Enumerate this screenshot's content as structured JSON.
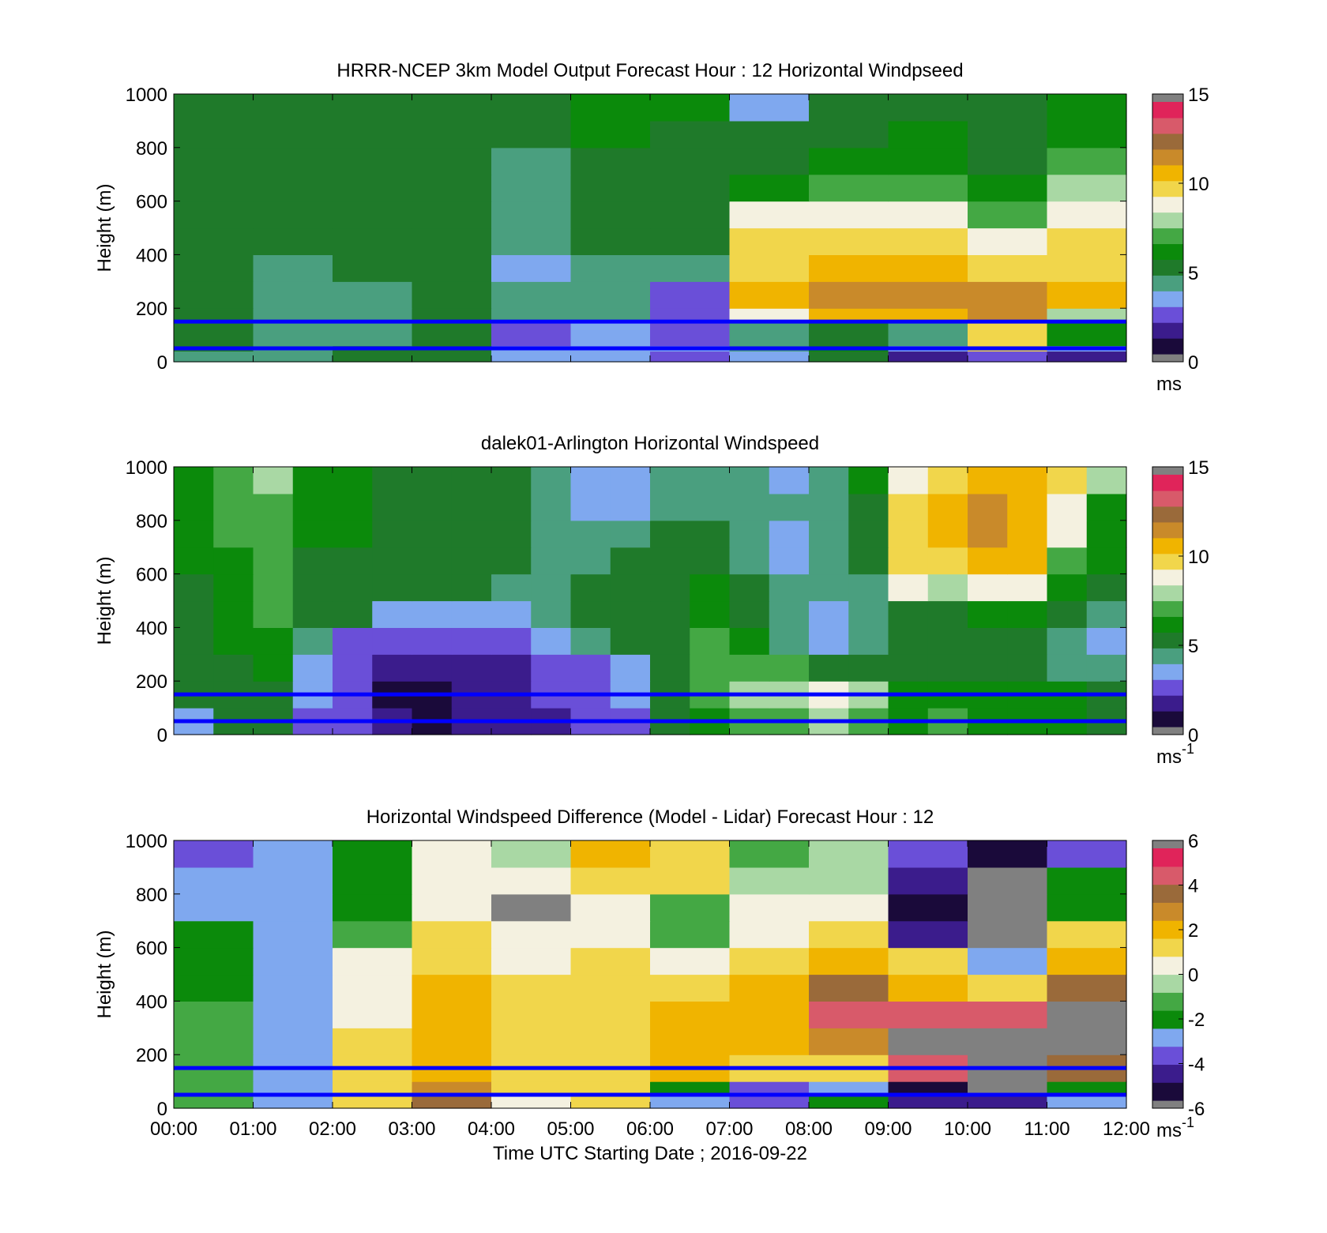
{
  "palettes": {
    "speed": [
      "#1a0a3a",
      "#3b1c8c",
      "#6a4fd8",
      "#7fa8ef",
      "#4a9f7f",
      "#1f7a2a",
      "#0b8a0b",
      "#44a844",
      "#a9d8a4",
      "#f4f1e0",
      "#f1d64b",
      "#f0b400",
      "#c98a2a",
      "#9a6a3a",
      "#d85a6a",
      "#e0245a"
    ],
    "diff": [
      "#1a0a3a",
      "#3b1c8c",
      "#6a4fd8",
      "#7fa8ef",
      "#0b8a0b",
      "#44a844",
      "#a9d8a4",
      "#f4f1e0",
      "#f1d64b",
      "#f0b400",
      "#c98a2a",
      "#9a6a3a",
      "#d85a6a",
      "#e0245a"
    ],
    "over_under": "#808080"
  },
  "reference_lines": {
    "color": "#0000ff",
    "heights_m": [
      50,
      150
    ]
  },
  "chart_data": [
    {
      "type": "heatmap",
      "title": "HRRR-NCEP 3km Model Output   Forecast Hour : 12 Horizontal Windpseed",
      "xlabel": "",
      "ylabel": "Height (m)",
      "ylim": [
        0,
        1000
      ],
      "yticks": [
        "0",
        "200",
        "400",
        "600",
        "800",
        "1000"
      ],
      "xlim_hours": [
        0,
        12
      ],
      "show_xtick_labels": false,
      "colorbar": {
        "range": [
          0,
          15
        ],
        "ticks": [
          "0",
          "5",
          "10",
          "15"
        ],
        "unit": "ms",
        "unit_sup": "",
        "palette": "speed"
      },
      "x_hours": [
        0,
        1,
        2,
        3,
        4,
        5,
        6,
        7,
        8,
        9,
        10,
        11
      ],
      "heights_m": [
        0,
        40,
        60,
        150,
        200,
        300,
        400,
        500,
        600,
        700,
        800,
        900,
        1000
      ],
      "values": [
        [
          4.2,
          4.6,
          4.7,
          4.9,
          3.0,
          3.4,
          2.8,
          3.5,
          5.0,
          1.5,
          2.0,
          1.6
        ],
        [
          5.0,
          4.2,
          5.0,
          4.9,
          3.5,
          3.7,
          3.2,
          4.5,
          5.8,
          3.0,
          9.5,
          3.3
        ],
        [
          5.1,
          4.0,
          4.5,
          5.0,
          2.6,
          3.2,
          2.0,
          4.6,
          5.5,
          4.6,
          9.8,
          6.2
        ],
        [
          4.8,
          4.3,
          4.5,
          5.0,
          4.0,
          3.8,
          2.0,
          8.6,
          11.0,
          10.9,
          11.5,
          8.3
        ],
        [
          4.7,
          4.2,
          4.5,
          5.0,
          4.0,
          3.8,
          2.8,
          10.5,
          11.5,
          11.7,
          11.3,
          10.5
        ],
        [
          4.7,
          4.5,
          4.7,
          5.0,
          3.6,
          4.2,
          4.0,
          10.3,
          10.8,
          10.8,
          9.7,
          10.2
        ],
        [
          4.7,
          4.7,
          4.7,
          5.4,
          4.0,
          4.9,
          4.9,
          9.5,
          9.5,
          9.4,
          9.0,
          9.5
        ],
        [
          4.7,
          4.7,
          4.7,
          5.5,
          4.0,
          5.0,
          5.0,
          9.0,
          9.0,
          8.9,
          7.4,
          9.3
        ],
        [
          4.8,
          4.8,
          4.8,
          5.6,
          4.3,
          5.2,
          5.2,
          6.4,
          6.6,
          6.6,
          6.0,
          7.9
        ],
        [
          5.0,
          5.0,
          5.0,
          5.6,
          4.6,
          5.3,
          5.4,
          5.3,
          5.9,
          6.0,
          5.6,
          7.2
        ],
        [
          5.0,
          5.0,
          5.1,
          5.6,
          5.1,
          5.8,
          5.5,
          4.8,
          5.3,
          5.8,
          5.3,
          6.4
        ],
        [
          5.1,
          5.1,
          5.1,
          5.6,
          5.2,
          5.8,
          5.8,
          3.3,
          4.9,
          5.3,
          4.9,
          6.1
        ]
      ]
    },
    {
      "type": "heatmap",
      "title": "dalek01-Arlington  Horizontal Windspeed",
      "xlabel": "",
      "ylabel": "Height (m)",
      "ylim": [
        0,
        1000
      ],
      "yticks": [
        "0",
        "200",
        "400",
        "600",
        "800",
        "1000"
      ],
      "xlim_hours": [
        0,
        12
      ],
      "show_xtick_labels": false,
      "colorbar": {
        "range": [
          0,
          15
        ],
        "ticks": [
          "0",
          "5",
          "10",
          "15"
        ],
        "unit": "ms",
        "unit_sup": "-1",
        "palette": "speed"
      },
      "x_hours": [
        0,
        0.5,
        1,
        1.5,
        2,
        2.5,
        3,
        3.5,
        4,
        4.5,
        5,
        5.5,
        6,
        6.5,
        7,
        7.5,
        8,
        8.5,
        9,
        9.5,
        10,
        10.5,
        11,
        11.5
      ],
      "heights_m": [
        0,
        100,
        200,
        300,
        400,
        500,
        600,
        700,
        800,
        900,
        1000
      ],
      "values": [
        [
          3.5,
          5.0,
          5.0,
          2.5,
          2.0,
          1.0,
          0.8,
          1.2,
          1.5,
          1.8,
          2.0,
          2.5,
          5.0,
          6.5,
          7.0,
          7.2,
          7.5,
          7.0,
          6.5,
          7.0,
          6.0,
          6.5,
          6.0,
          5.5
        ],
        [
          4.8,
          5.2,
          5.5,
          3.0,
          2.0,
          0.8,
          0.7,
          1.2,
          1.5,
          2.0,
          2.2,
          3.5,
          5.0,
          7.0,
          7.5,
          8.0,
          8.5,
          7.5,
          6.5,
          6.5,
          6.0,
          6.0,
          5.8,
          5.2
        ],
        [
          5.0,
          5.5,
          6.0,
          3.5,
          2.2,
          1.2,
          1.0,
          1.5,
          1.8,
          2.2,
          2.5,
          3.5,
          5.0,
          7.2,
          7.0,
          7.2,
          5.5,
          5.0,
          5.0,
          5.2,
          5.0,
          5.0,
          4.5,
          4.0
        ],
        [
          5.0,
          5.8,
          6.2,
          4.5,
          2.8,
          2.5,
          2.5,
          2.6,
          2.8,
          3.2,
          4.0,
          4.8,
          5.0,
          7.0,
          6.0,
          4.5,
          3.5,
          4.0,
          4.8,
          5.0,
          5.0,
          5.2,
          4.5,
          3.5
        ],
        [
          5.2,
          6.0,
          6.8,
          5.0,
          4.8,
          3.5,
          3.2,
          3.3,
          3.5,
          4.0,
          4.8,
          5.0,
          5.0,
          6.5,
          5.0,
          4.0,
          3.5,
          4.0,
          5.2,
          5.5,
          5.8,
          5.8,
          5.0,
          4.5
        ],
        [
          5.5,
          6.5,
          7.0,
          5.2,
          5.2,
          5.0,
          5.0,
          4.8,
          4.5,
          4.5,
          5.0,
          5.0,
          5.0,
          6.0,
          5.0,
          4.0,
          4.0,
          4.5,
          9.0,
          7.5,
          8.5,
          9.0,
          6.5,
          5.5
        ],
        [
          6.0,
          6.5,
          7.0,
          5.5,
          5.5,
          5.2,
          5.0,
          5.0,
          4.8,
          4.5,
          4.0,
          5.0,
          5.2,
          5.5,
          4.5,
          3.5,
          4.0,
          5.0,
          9.5,
          10.0,
          10.5,
          10.5,
          7.0,
          6.0
        ],
        [
          6.0,
          6.8,
          7.2,
          5.8,
          5.8,
          5.2,
          5.0,
          5.0,
          4.8,
          4.2,
          3.8,
          3.8,
          5.0,
          5.0,
          4.5,
          3.5,
          4.0,
          5.0,
          10.0,
          10.5,
          11.5,
          10.5,
          8.5,
          6.5
        ],
        [
          6.2,
          6.8,
          7.2,
          6.0,
          6.0,
          5.5,
          5.2,
          5.0,
          4.8,
          4.0,
          3.5,
          3.5,
          4.5,
          4.5,
          4.2,
          3.8,
          4.0,
          5.0,
          9.5,
          10.5,
          11.8,
          10.8,
          9.0,
          6.5
        ],
        [
          6.5,
          7.0,
          7.5,
          6.5,
          6.2,
          5.5,
          5.2,
          5.0,
          4.8,
          4.0,
          3.5,
          3.6,
          4.2,
          4.3,
          4.0,
          3.5,
          4.5,
          6.0,
          9.0,
          10.0,
          11.0,
          10.5,
          9.5,
          8.0
        ]
      ]
    },
    {
      "type": "heatmap",
      "title": "Horizontal Windspeed Difference (Model - Lidar) Forecast Hour : 12",
      "xlabel": "Time UTC  Starting Date ; 2016-09-22",
      "ylabel": "Height (m)",
      "ylim": [
        0,
        1000
      ],
      "yticks": [
        "0",
        "200",
        "400",
        "600",
        "800",
        "1000"
      ],
      "xlim_hours": [
        0,
        12
      ],
      "show_xtick_labels": true,
      "xticks": [
        "00:00",
        "01:00",
        "02:00",
        "03:00",
        "04:00",
        "05:00",
        "06:00",
        "07:00",
        "08:00",
        "09:00",
        "10:00",
        "11:00",
        "12:00"
      ],
      "colorbar": {
        "range": [
          -6,
          6
        ],
        "ticks": [
          "-6",
          "-4",
          "-2",
          "0",
          "2",
          "4",
          "6"
        ],
        "unit": "ms",
        "unit_sup": "-1",
        "palette": "diff"
      },
      "x_hours": [
        0,
        1,
        2,
        3,
        4,
        5,
        6,
        7,
        8,
        9,
        10,
        11
      ],
      "heights_m": [
        0,
        50,
        100,
        200,
        300,
        400,
        500,
        600,
        700,
        800,
        900,
        1000
      ],
      "values": [
        [
          -1.0,
          -3.0,
          1.0,
          3.5,
          0.5,
          1.0,
          -3.0,
          -4.0,
          -2.0,
          -5.0,
          -5.0,
          -3.0
        ],
        [
          -1.0,
          -3.0,
          1.5,
          3.0,
          1.5,
          1.5,
          -2.5,
          -3.5,
          -3.0,
          -5.5,
          -7.0,
          -2.0
        ],
        [
          -1.0,
          -3.0,
          1.5,
          2.5,
          1.5,
          1.5,
          2.0,
          1.0,
          1.5,
          4.5,
          -7.0,
          4.0
        ],
        [
          -1.2,
          -3.0,
          1.0,
          2.5,
          1.5,
          1.5,
          2.0,
          2.0,
          3.0,
          -7.0,
          -7.0,
          -7.0
        ],
        [
          -1.5,
          -3.0,
          0.5,
          2.5,
          1.0,
          1.5,
          2.0,
          2.0,
          4.5,
          4.5,
          4.5,
          -7.0
        ],
        [
          -1.8,
          -3.0,
          0.0,
          2.0,
          1.0,
          1.0,
          1.5,
          2.0,
          4.0,
          2.0,
          1.0,
          4.0
        ],
        [
          -2.0,
          -3.0,
          0.0,
          1.0,
          0.0,
          1.0,
          0.5,
          1.5,
          2.5,
          1.0,
          -3.0,
          2.5
        ],
        [
          -2.2,
          -3.0,
          -1.0,
          1.0,
          0.0,
          0.5,
          -1.5,
          0.5,
          1.0,
          -5.0,
          -7.0,
          1.5
        ],
        [
          -2.8,
          -3.0,
          -2.0,
          0.5,
          -7.0,
          0.5,
          -1.0,
          0.0,
          0.0,
          -5.5,
          -7.0,
          -2.5
        ],
        [
          -3.0,
          -3.0,
          -2.0,
          0.5,
          0.0,
          1.5,
          1.0,
          -0.5,
          -0.5,
          -5.0,
          -7.0,
          -2.5
        ],
        [
          -3.5,
          -3.0,
          -2.0,
          0.0,
          -0.5,
          2.0,
          1.5,
          -1.0,
          -0.5,
          -4.0,
          -6.0,
          -4.0
        ]
      ]
    }
  ]
}
